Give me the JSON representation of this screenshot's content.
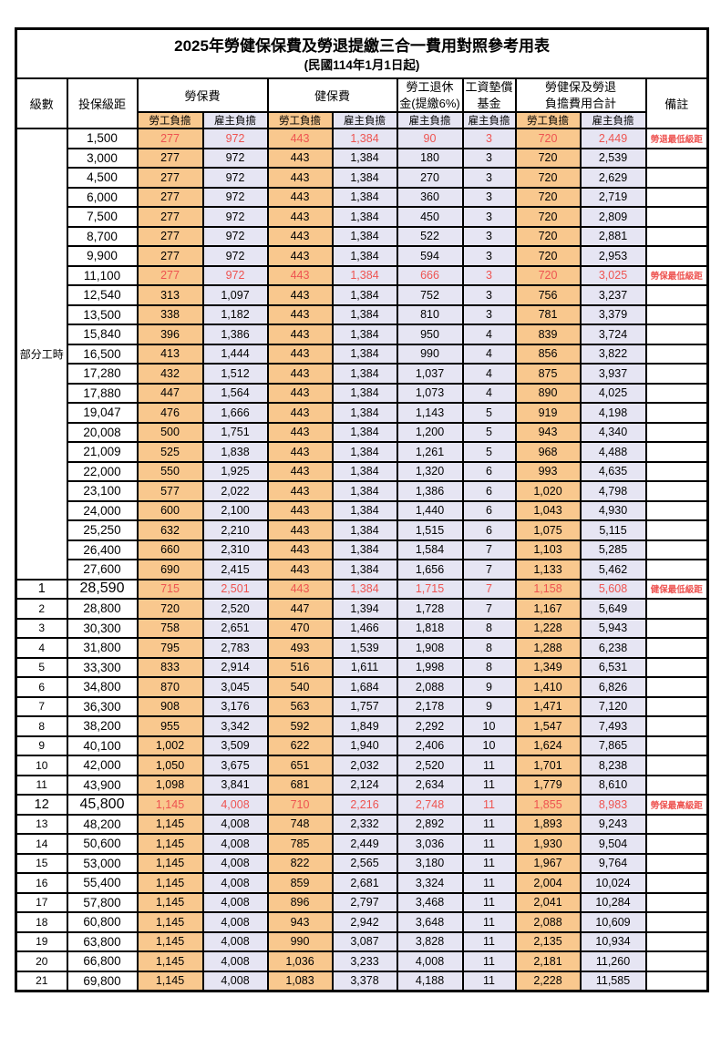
{
  "title": "2025年勞健保保費及勞退提繳三合一費用對照參考用表",
  "subtitle": "(民國114年1月1日起)",
  "header": {
    "level": "級數",
    "bracket": "投保級距",
    "labor": "勞保費",
    "health": "健保費",
    "pension_line1": "勞工退休",
    "pension_line2": "金(提繳6%)",
    "wage_fund_line1": "工資墊償",
    "wage_fund_line2": "基金",
    "total_line1": "勞健保及勞退",
    "total_line2": "負擔費用合計",
    "remark": "備註",
    "employee": "勞工負擔",
    "employer": "雇主負擔"
  },
  "part_time": {
    "label": "部分工時",
    "rowspan": 23
  },
  "colors": {
    "employee_bg": "#f9c88e",
    "employer_bg": "#e6e5f3",
    "red_text": "#ee5451",
    "border": "#000000"
  },
  "rows": [
    {
      "level": "",
      "bracket": "1,500",
      "values": [
        "277",
        "972",
        "443",
        "1,384",
        "90",
        "3",
        "720",
        "2,449"
      ],
      "remark": "勞退最低級距",
      "red": true,
      "emph": false
    },
    {
      "level": "",
      "bracket": "3,000",
      "values": [
        "277",
        "972",
        "443",
        "1,384",
        "180",
        "3",
        "720",
        "2,539"
      ],
      "remark": "",
      "red": false,
      "emph": false
    },
    {
      "level": "",
      "bracket": "4,500",
      "values": [
        "277",
        "972",
        "443",
        "1,384",
        "270",
        "3",
        "720",
        "2,629"
      ],
      "remark": "",
      "red": false,
      "emph": false
    },
    {
      "level": "",
      "bracket": "6,000",
      "values": [
        "277",
        "972",
        "443",
        "1,384",
        "360",
        "3",
        "720",
        "2,719"
      ],
      "remark": "",
      "red": false,
      "emph": false
    },
    {
      "level": "",
      "bracket": "7,500",
      "values": [
        "277",
        "972",
        "443",
        "1,384",
        "450",
        "3",
        "720",
        "2,809"
      ],
      "remark": "",
      "red": false,
      "emph": false
    },
    {
      "level": "",
      "bracket": "8,700",
      "values": [
        "277",
        "972",
        "443",
        "1,384",
        "522",
        "3",
        "720",
        "2,881"
      ],
      "remark": "",
      "red": false,
      "emph": false
    },
    {
      "level": "",
      "bracket": "9,900",
      "values": [
        "277",
        "972",
        "443",
        "1,384",
        "594",
        "3",
        "720",
        "2,953"
      ],
      "remark": "",
      "red": false,
      "emph": false
    },
    {
      "level": "",
      "bracket": "11,100",
      "values": [
        "277",
        "972",
        "443",
        "1,384",
        "666",
        "3",
        "720",
        "3,025"
      ],
      "remark": "勞保最低級距",
      "red": true,
      "emph": false
    },
    {
      "level": "",
      "bracket": "12,540",
      "values": [
        "313",
        "1,097",
        "443",
        "1,384",
        "752",
        "3",
        "756",
        "3,237"
      ],
      "remark": "",
      "red": false,
      "emph": false
    },
    {
      "level": "",
      "bracket": "13,500",
      "values": [
        "338",
        "1,182",
        "443",
        "1,384",
        "810",
        "3",
        "781",
        "3,379"
      ],
      "remark": "",
      "red": false,
      "emph": false
    },
    {
      "level": "",
      "bracket": "15,840",
      "values": [
        "396",
        "1,386",
        "443",
        "1,384",
        "950",
        "4",
        "839",
        "3,724"
      ],
      "remark": "",
      "red": false,
      "emph": false
    },
    {
      "level": "",
      "bracket": "16,500",
      "values": [
        "413",
        "1,444",
        "443",
        "1,384",
        "990",
        "4",
        "856",
        "3,822"
      ],
      "remark": "",
      "red": false,
      "emph": false
    },
    {
      "level": "",
      "bracket": "17,280",
      "values": [
        "432",
        "1,512",
        "443",
        "1,384",
        "1,037",
        "4",
        "875",
        "3,937"
      ],
      "remark": "",
      "red": false,
      "emph": false
    },
    {
      "level": "",
      "bracket": "17,880",
      "values": [
        "447",
        "1,564",
        "443",
        "1,384",
        "1,073",
        "4",
        "890",
        "4,025"
      ],
      "remark": "",
      "red": false,
      "emph": false
    },
    {
      "level": "",
      "bracket": "19,047",
      "values": [
        "476",
        "1,666",
        "443",
        "1,384",
        "1,143",
        "5",
        "919",
        "4,198"
      ],
      "remark": "",
      "red": false,
      "emph": false
    },
    {
      "level": "",
      "bracket": "20,008",
      "values": [
        "500",
        "1,751",
        "443",
        "1,384",
        "1,200",
        "5",
        "943",
        "4,340"
      ],
      "remark": "",
      "red": false,
      "emph": false
    },
    {
      "level": "",
      "bracket": "21,009",
      "values": [
        "525",
        "1,838",
        "443",
        "1,384",
        "1,261",
        "5",
        "968",
        "4,488"
      ],
      "remark": "",
      "red": false,
      "emph": false
    },
    {
      "level": "",
      "bracket": "22,000",
      "values": [
        "550",
        "1,925",
        "443",
        "1,384",
        "1,320",
        "6",
        "993",
        "4,635"
      ],
      "remark": "",
      "red": false,
      "emph": false
    },
    {
      "level": "",
      "bracket": "23,100",
      "values": [
        "577",
        "2,022",
        "443",
        "1,384",
        "1,386",
        "6",
        "1,020",
        "4,798"
      ],
      "remark": "",
      "red": false,
      "emph": false
    },
    {
      "level": "",
      "bracket": "24,000",
      "values": [
        "600",
        "2,100",
        "443",
        "1,384",
        "1,440",
        "6",
        "1,043",
        "4,930"
      ],
      "remark": "",
      "red": false,
      "emph": false
    },
    {
      "level": "",
      "bracket": "25,250",
      "values": [
        "632",
        "2,210",
        "443",
        "1,384",
        "1,515",
        "6",
        "1,075",
        "5,115"
      ],
      "remark": "",
      "red": false,
      "emph": false
    },
    {
      "level": "",
      "bracket": "26,400",
      "values": [
        "660",
        "2,310",
        "443",
        "1,384",
        "1,584",
        "7",
        "1,103",
        "5,285"
      ],
      "remark": "",
      "red": false,
      "emph": false
    },
    {
      "level": "",
      "bracket": "27,600",
      "values": [
        "690",
        "2,415",
        "443",
        "1,384",
        "1,656",
        "7",
        "1,133",
        "5,462"
      ],
      "remark": "",
      "red": false,
      "emph": false
    },
    {
      "level": "1",
      "bracket": "28,590",
      "values": [
        "715",
        "2,501",
        "443",
        "1,384",
        "1,715",
        "7",
        "1,158",
        "5,608"
      ],
      "remark": "健保最低級距",
      "red": true,
      "emph": true
    },
    {
      "level": "2",
      "bracket": "28,800",
      "values": [
        "720",
        "2,520",
        "447",
        "1,394",
        "1,728",
        "7",
        "1,167",
        "5,649"
      ],
      "remark": "",
      "red": false,
      "emph": false
    },
    {
      "level": "3",
      "bracket": "30,300",
      "values": [
        "758",
        "2,651",
        "470",
        "1,466",
        "1,818",
        "8",
        "1,228",
        "5,943"
      ],
      "remark": "",
      "red": false,
      "emph": false
    },
    {
      "level": "4",
      "bracket": "31,800",
      "values": [
        "795",
        "2,783",
        "493",
        "1,539",
        "1,908",
        "8",
        "1,288",
        "6,238"
      ],
      "remark": "",
      "red": false,
      "emph": false
    },
    {
      "level": "5",
      "bracket": "33,300",
      "values": [
        "833",
        "2,914",
        "516",
        "1,611",
        "1,998",
        "8",
        "1,349",
        "6,531"
      ],
      "remark": "",
      "red": false,
      "emph": false
    },
    {
      "level": "6",
      "bracket": "34,800",
      "values": [
        "870",
        "3,045",
        "540",
        "1,684",
        "2,088",
        "9",
        "1,410",
        "6,826"
      ],
      "remark": "",
      "red": false,
      "emph": false
    },
    {
      "level": "7",
      "bracket": "36,300",
      "values": [
        "908",
        "3,176",
        "563",
        "1,757",
        "2,178",
        "9",
        "1,471",
        "7,120"
      ],
      "remark": "",
      "red": false,
      "emph": false
    },
    {
      "level": "8",
      "bracket": "38,200",
      "values": [
        "955",
        "3,342",
        "592",
        "1,849",
        "2,292",
        "10",
        "1,547",
        "7,493"
      ],
      "remark": "",
      "red": false,
      "emph": false
    },
    {
      "level": "9",
      "bracket": "40,100",
      "values": [
        "1,002",
        "3,509",
        "622",
        "1,940",
        "2,406",
        "10",
        "1,624",
        "7,865"
      ],
      "remark": "",
      "red": false,
      "emph": false
    },
    {
      "level": "10",
      "bracket": "42,000",
      "values": [
        "1,050",
        "3,675",
        "651",
        "2,032",
        "2,520",
        "11",
        "1,701",
        "8,238"
      ],
      "remark": "",
      "red": false,
      "emph": false
    },
    {
      "level": "11",
      "bracket": "43,900",
      "values": [
        "1,098",
        "3,841",
        "681",
        "2,124",
        "2,634",
        "11",
        "1,779",
        "8,610"
      ],
      "remark": "",
      "red": false,
      "emph": false
    },
    {
      "level": "12",
      "bracket": "45,800",
      "values": [
        "1,145",
        "4,008",
        "710",
        "2,216",
        "2,748",
        "11",
        "1,855",
        "8,983"
      ],
      "remark": "勞保最高級距",
      "red": true,
      "emph": true
    },
    {
      "level": "13",
      "bracket": "48,200",
      "values": [
        "1,145",
        "4,008",
        "748",
        "2,332",
        "2,892",
        "11",
        "1,893",
        "9,243"
      ],
      "remark": "",
      "red": false,
      "emph": false
    },
    {
      "level": "14",
      "bracket": "50,600",
      "values": [
        "1,145",
        "4,008",
        "785",
        "2,449",
        "3,036",
        "11",
        "1,930",
        "9,504"
      ],
      "remark": "",
      "red": false,
      "emph": false
    },
    {
      "level": "15",
      "bracket": "53,000",
      "values": [
        "1,145",
        "4,008",
        "822",
        "2,565",
        "3,180",
        "11",
        "1,967",
        "9,764"
      ],
      "remark": "",
      "red": false,
      "emph": false
    },
    {
      "level": "16",
      "bracket": "55,400",
      "values": [
        "1,145",
        "4,008",
        "859",
        "2,681",
        "3,324",
        "11",
        "2,004",
        "10,024"
      ],
      "remark": "",
      "red": false,
      "emph": false
    },
    {
      "level": "17",
      "bracket": "57,800",
      "values": [
        "1,145",
        "4,008",
        "896",
        "2,797",
        "3,468",
        "11",
        "2,041",
        "10,284"
      ],
      "remark": "",
      "red": false,
      "emph": false
    },
    {
      "level": "18",
      "bracket": "60,800",
      "values": [
        "1,145",
        "4,008",
        "943",
        "2,942",
        "3,648",
        "11",
        "2,088",
        "10,609"
      ],
      "remark": "",
      "red": false,
      "emph": false
    },
    {
      "level": "19",
      "bracket": "63,800",
      "values": [
        "1,145",
        "4,008",
        "990",
        "3,087",
        "3,828",
        "11",
        "2,135",
        "10,934"
      ],
      "remark": "",
      "red": false,
      "emph": false
    },
    {
      "level": "20",
      "bracket": "66,800",
      "values": [
        "1,145",
        "4,008",
        "1,036",
        "3,233",
        "4,008",
        "11",
        "2,181",
        "11,260"
      ],
      "remark": "",
      "red": false,
      "emph": false
    },
    {
      "level": "21",
      "bracket": "69,800",
      "values": [
        "1,145",
        "4,008",
        "1,083",
        "3,378",
        "4,188",
        "11",
        "2,228",
        "11,585"
      ],
      "remark": "",
      "red": false,
      "emph": false
    }
  ]
}
